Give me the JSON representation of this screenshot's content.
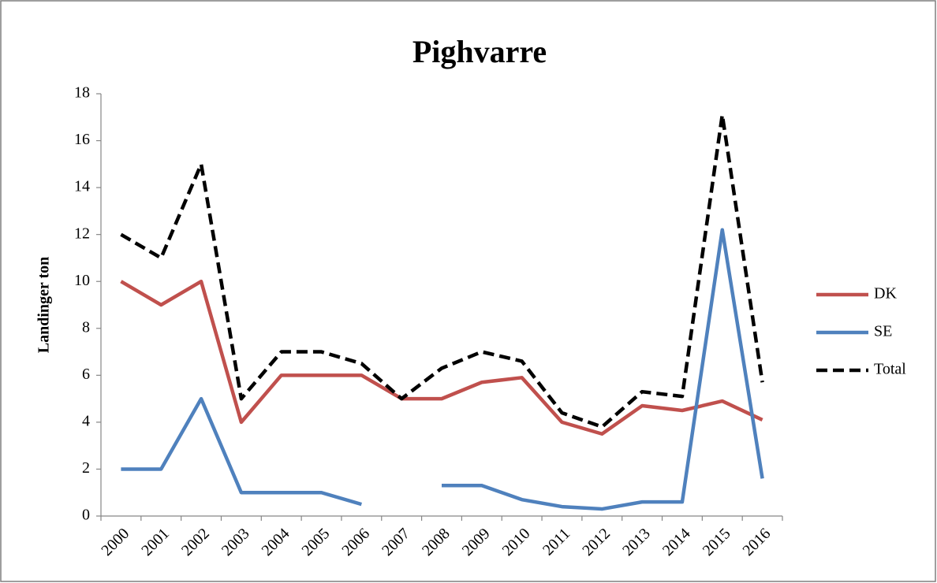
{
  "chart_data": {
    "type": "line",
    "title": "Pighvarre",
    "y_label": "Landinger ton",
    "categories": [
      "2000",
      "2001",
      "2002",
      "2003",
      "2004",
      "2005",
      "2006",
      "2007",
      "2008",
      "2009",
      "2010",
      "2011",
      "2012",
      "2013",
      "2014",
      "2015",
      "2016"
    ],
    "series": [
      {
        "name": "DK",
        "color": "#c0504d",
        "dashed": false,
        "values": [
          10,
          9,
          10,
          4,
          6,
          6,
          6,
          5,
          5,
          5.7,
          5.9,
          4,
          3.5,
          4.7,
          4.5,
          4.9,
          4.1
        ]
      },
      {
        "name": "SE",
        "color": "#4f81bd",
        "dashed": false,
        "values": [
          2,
          2,
          5,
          1,
          1,
          1,
          0.5,
          null,
          1.3,
          1.3,
          0.7,
          0.4,
          0.3,
          0.6,
          0.6,
          12.2,
          1.6
        ]
      },
      {
        "name": "Total",
        "color": "#000000",
        "dashed": true,
        "values": [
          12,
          11,
          15,
          5,
          7,
          7,
          6.5,
          5,
          6.3,
          7,
          6.6,
          4.4,
          3.8,
          5.3,
          5.1,
          17.1,
          5.7
        ]
      }
    ],
    "ylim": [
      0,
      18
    ],
    "yticks": [
      0,
      2,
      4,
      6,
      8,
      10,
      12,
      14,
      16,
      18
    ],
    "grid": false,
    "legend": "right"
  }
}
